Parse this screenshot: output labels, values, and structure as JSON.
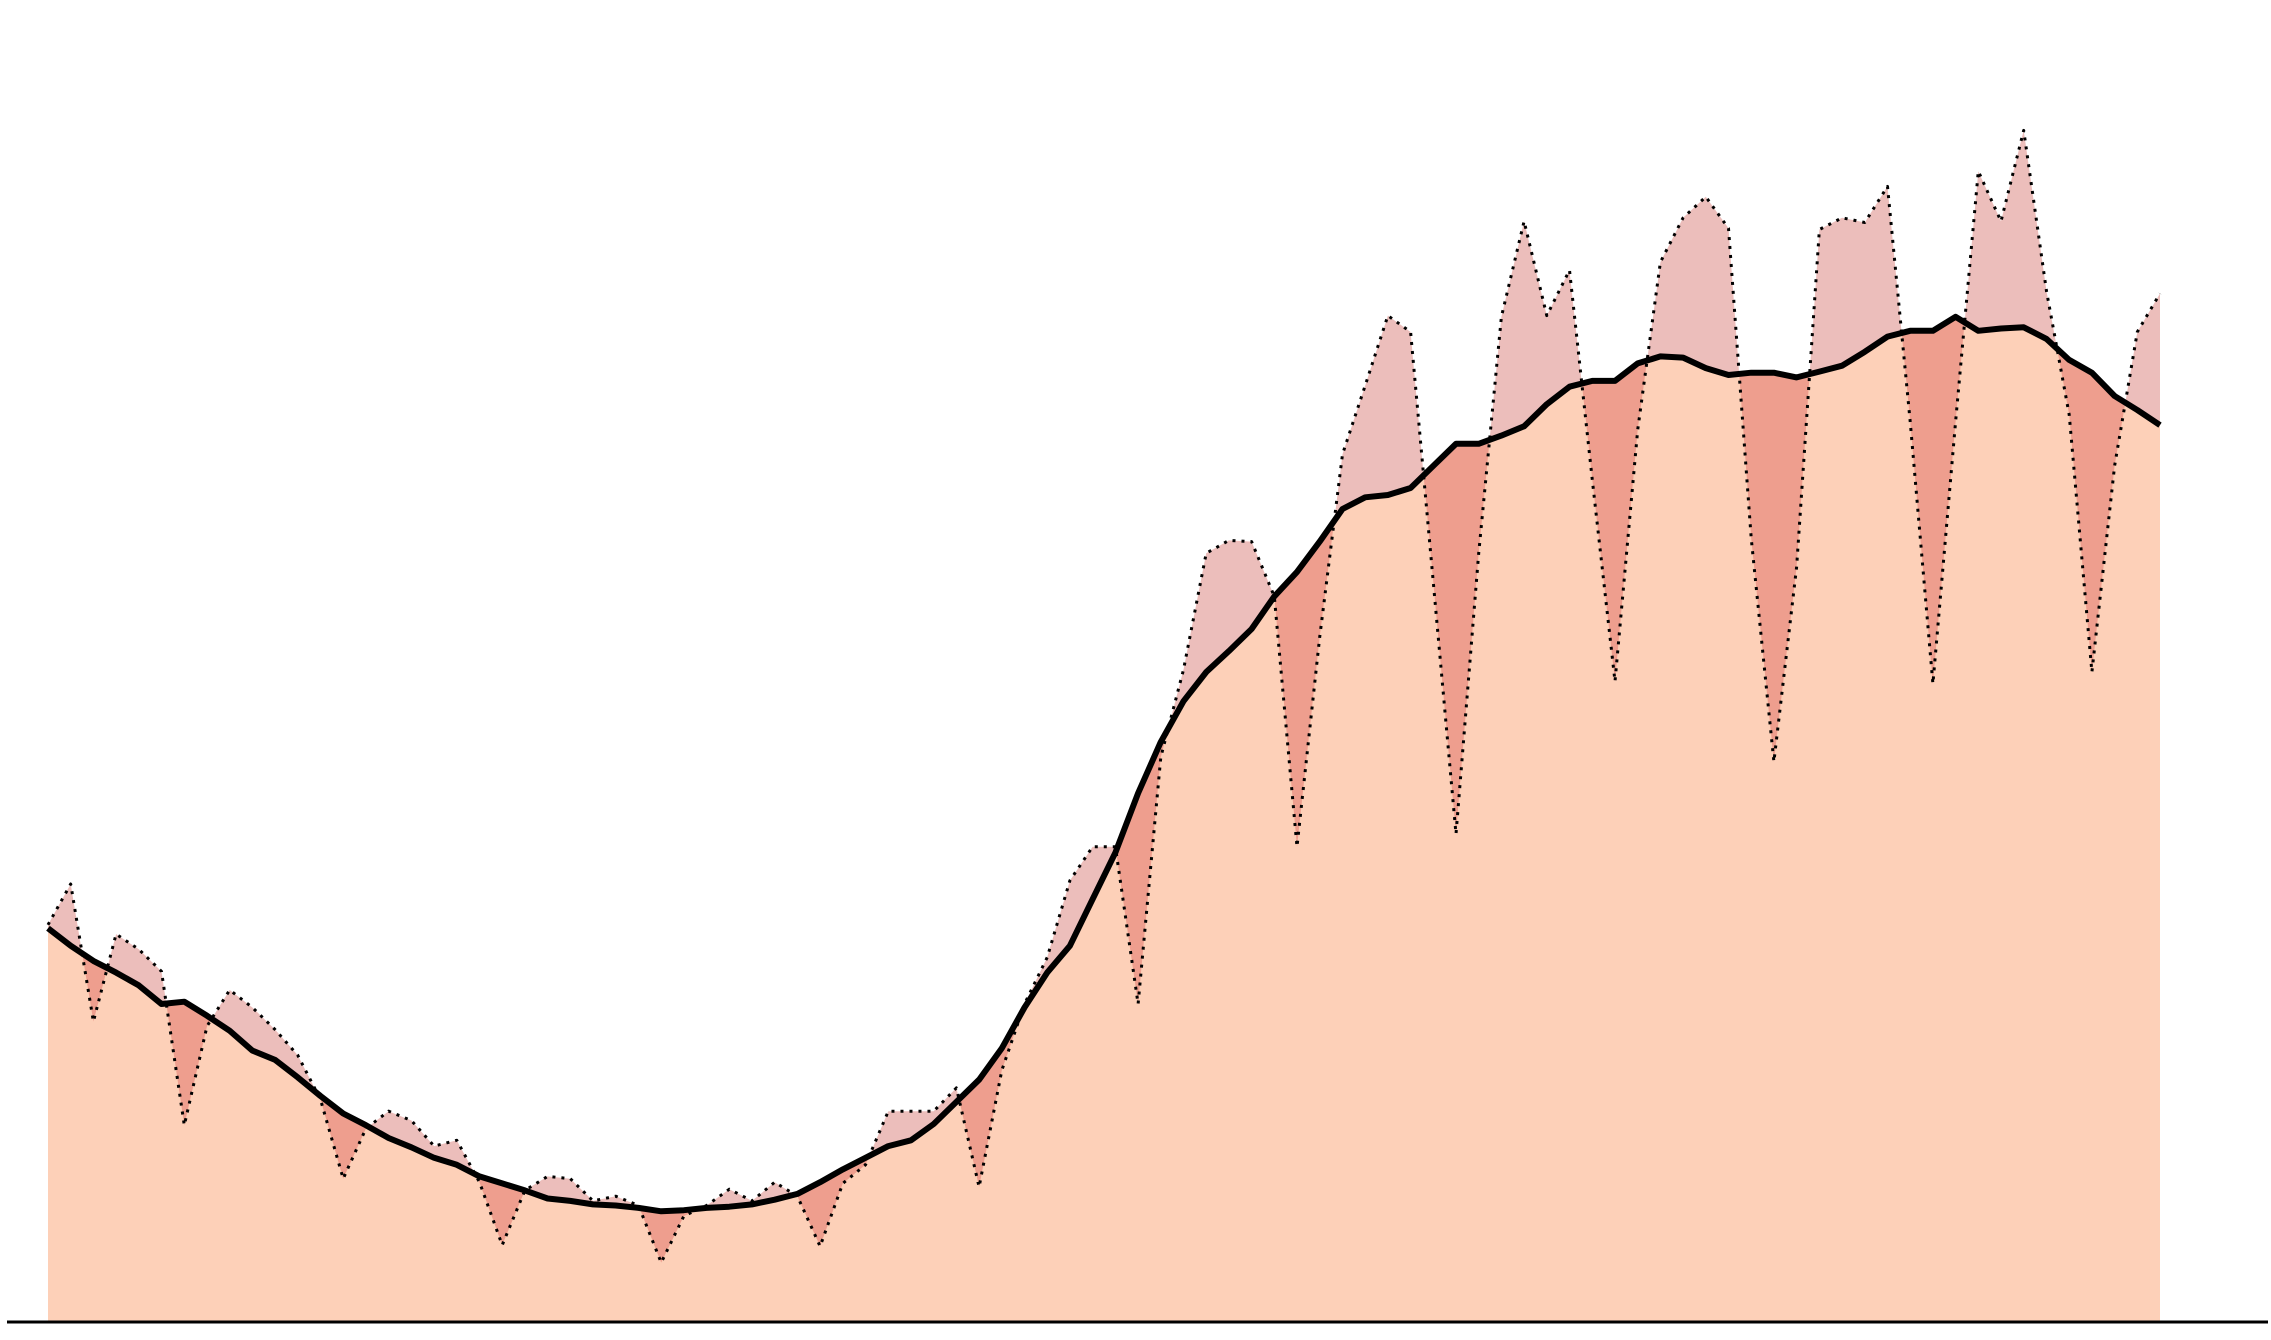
{
  "chart_data": {
    "type": "line",
    "ylim": [
      0,
      105
    ],
    "fill": "#fdd0b8",
    "fill_above": "#ecbebb",
    "fill_below": "#ee9e8e",
    "axis_color": "#000000",
    "series": [
      {
        "color": "#000000",
        "style": "dotted",
        "values": [
          34.1,
          37.6,
          25.8,
          33.3,
          32,
          30.1,
          16.9,
          25.4,
          28.5,
          27,
          25.1,
          22.9,
          19.1,
          12.3,
          16.6,
          18.1,
          17.3,
          15.1,
          15.6,
          12,
          6.6,
          11.3,
          12.5,
          12.3,
          10.4,
          10.8,
          10,
          5.1,
          9.1,
          10,
          11.4,
          10.4,
          12,
          10.8,
          6.5,
          11.9,
          13.5,
          18.1,
          18.1,
          18.1,
          20.1,
          11.6,
          21.6,
          27.3,
          31.3,
          37.9,
          40.8,
          40.8,
          27.3,
          48.5,
          56,
          66,
          67.1,
          67,
          62.3,
          40.8,
          58.8,
          74.5,
          80.4,
          86.4,
          85,
          63.5,
          41.9,
          66,
          86.3,
          94.5,
          86.4,
          90.3,
          72.3,
          55,
          76.6,
          91,
          94.8,
          96.6,
          93.9,
          67.3,
          48.1,
          64.8,
          93.8,
          94.8,
          94.4,
          97.5,
          77.3,
          54.8,
          77.3,
          98.8,
          94.5,
          102.3,
          88.5,
          77.9,
          55.8,
          73.5,
          85,
          88.3
        ]
      },
      {
        "color": "#000000",
        "style": "solid",
        "values": [
          33.8,
          32.3,
          31,
          30,
          28.9,
          27.3,
          27.5,
          26.3,
          25,
          23.3,
          22.5,
          21,
          19.4,
          17.9,
          16.9,
          15.8,
          15,
          14.1,
          13.5,
          12.5,
          11.9,
          11.3,
          10.6,
          10.4,
          10.1,
          10,
          9.8,
          9.5,
          9.6,
          9.8,
          9.9,
          10.1,
          10.5,
          11,
          12,
          13.1,
          14.1,
          15.1,
          15.6,
          17,
          18.9,
          20.8,
          23.5,
          27,
          30,
          32.3,
          36.3,
          40.3,
          45.4,
          49.8,
          53.3,
          55.8,
          57.6,
          59.5,
          62.3,
          64.4,
          67,
          69.8,
          70.8,
          71,
          71.6,
          73.5,
          75.4,
          75.4,
          76.1,
          76.9,
          78.8,
          80.3,
          80.8,
          80.8,
          82.3,
          82.9,
          82.8,
          81.9,
          81.3,
          81.5,
          81.5,
          81.1,
          81.6,
          82.1,
          83.3,
          84.6,
          85.1,
          85.1,
          86.3,
          85.1,
          85.3,
          85.4,
          84.4,
          82.6,
          81.5,
          79.5,
          78.3,
          77
        ]
      }
    ]
  }
}
